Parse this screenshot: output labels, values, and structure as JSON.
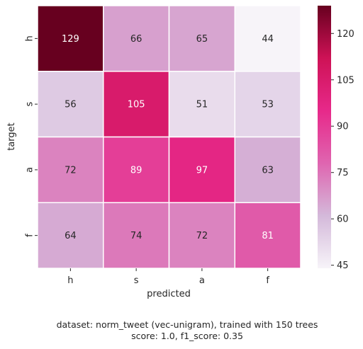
{
  "chart_data": {
    "type": "heatmap",
    "x_categories": [
      "h",
      "s",
      "a",
      "f"
    ],
    "y_categories": [
      "h",
      "s",
      "a",
      "f"
    ],
    "values": [
      [
        129,
        66,
        65,
        44
      ],
      [
        56,
        105,
        51,
        53
      ],
      [
        72,
        89,
        97,
        63
      ],
      [
        64,
        74,
        72,
        81
      ]
    ],
    "xlabel": "predicted",
    "ylabel": "target",
    "colorbar": {
      "ticks": [
        45,
        60,
        75,
        90,
        105,
        120
      ],
      "vmin": 44,
      "vmax": 129
    },
    "colormap": [
      "#f7f4f9",
      "#d4b9da",
      "#df65b0",
      "#e7298a",
      "#ce1256",
      "#67001f"
    ],
    "grid_line_color": "#ffffff"
  },
  "caption": {
    "line1": "dataset: norm_tweet (vec-unigram), trained with 150 trees",
    "line2": "score: 1.0, f1_score: 0.35"
  }
}
